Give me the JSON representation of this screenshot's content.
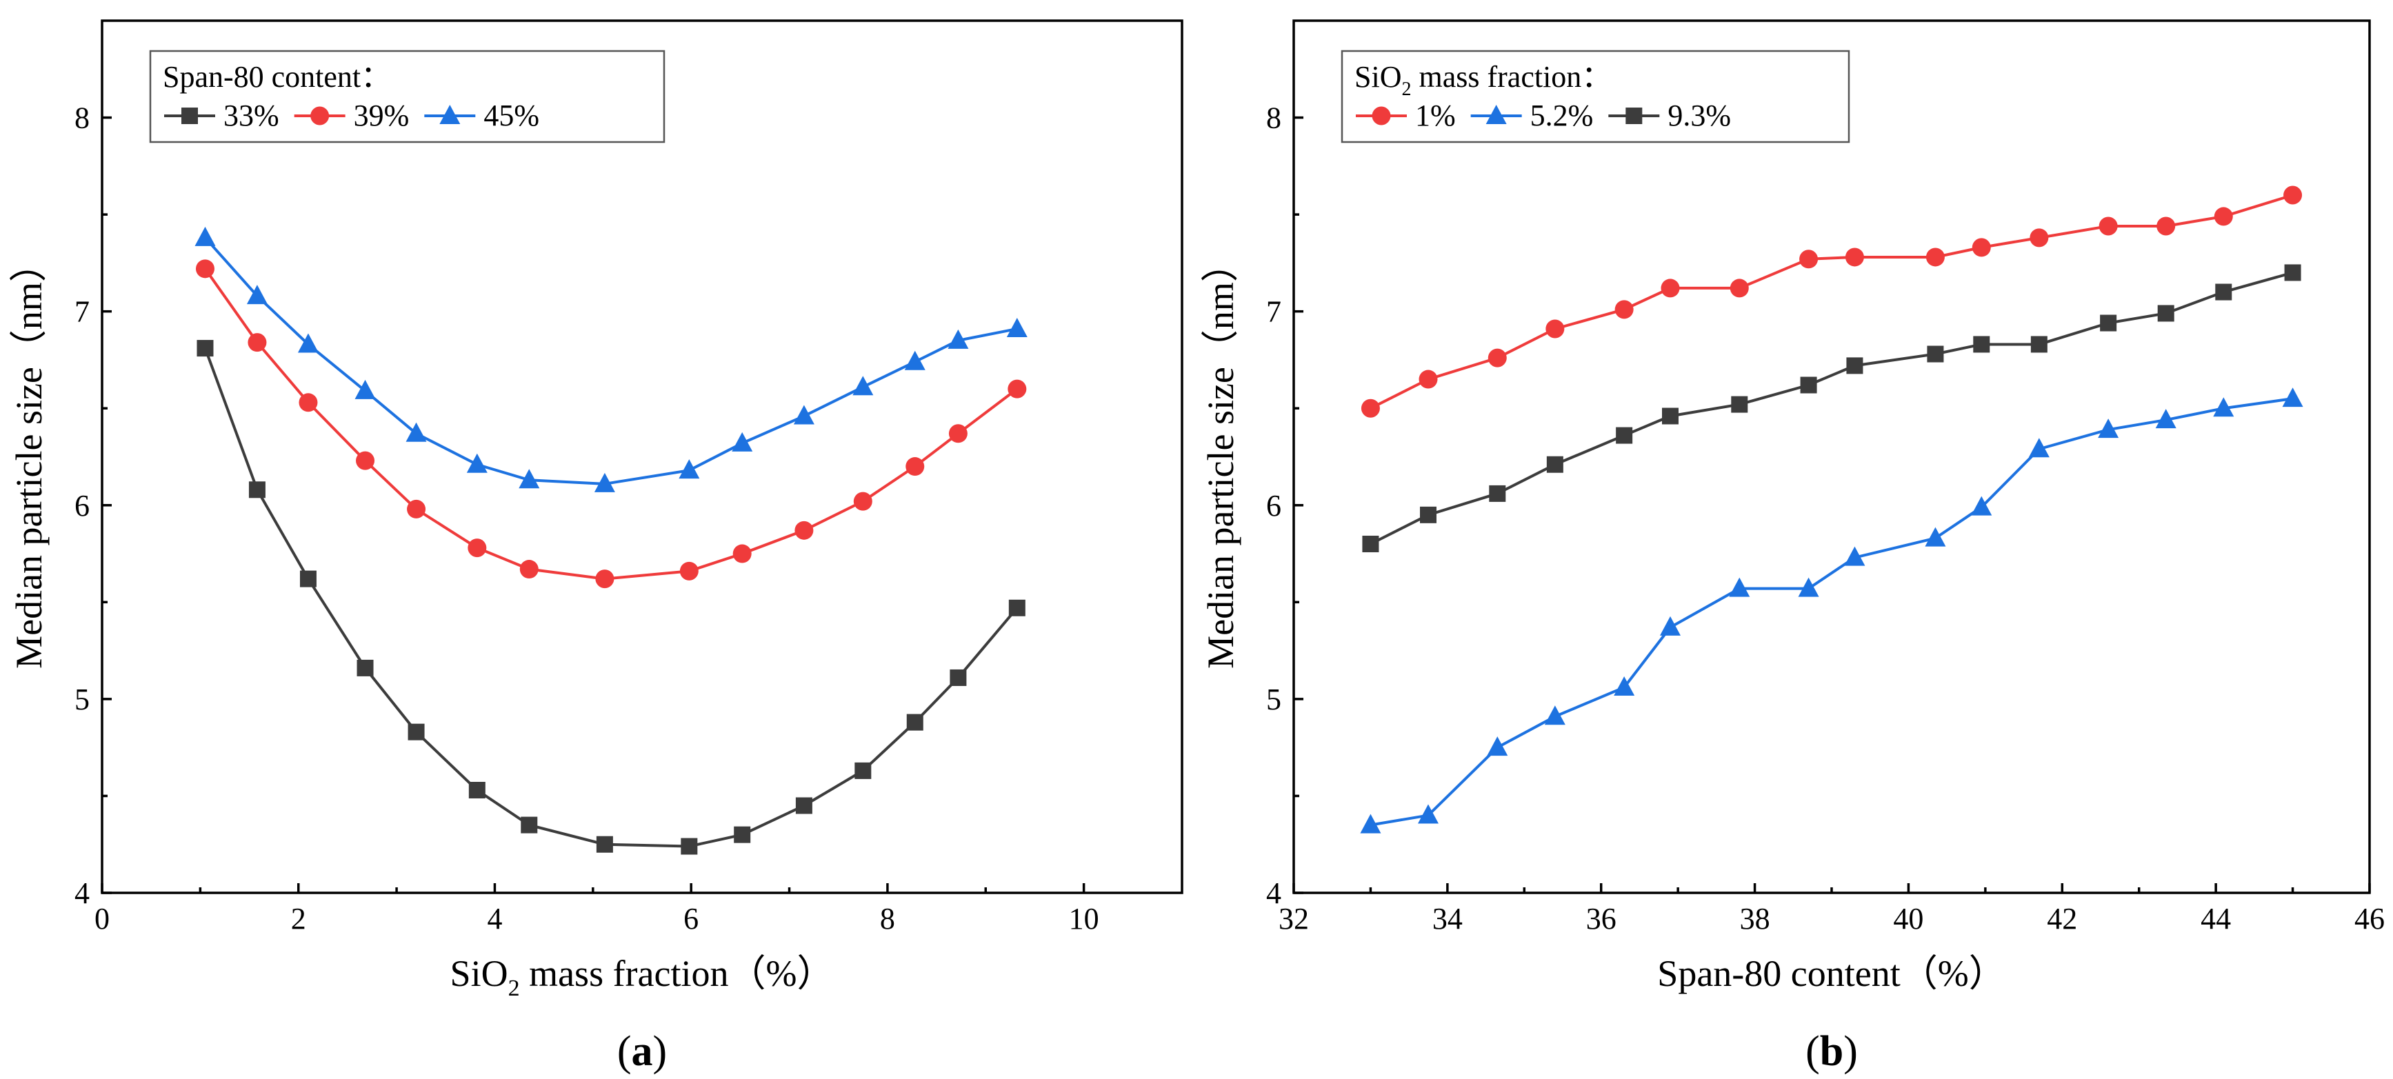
{
  "chart_data": [
    {
      "type": "line",
      "panel_label": "a",
      "xlabel_prefix": "SiO",
      "xlabel_sub": "2",
      "xlabel_suffix": " mass fraction（%）",
      "ylabel": "Median particle size（nm）",
      "xlim": [
        0,
        11
      ],
      "ylim": [
        4,
        8.5
      ],
      "xticks": [
        0,
        2,
        4,
        6,
        8,
        10
      ],
      "yticks": [
        4,
        5,
        6,
        7,
        8
      ],
      "legend_title_prefix": "Span-80 content",
      "legend_title_sub": "",
      "legend_title_suffix": "：",
      "legend_position": "top-left",
      "series": [
        {
          "name": "33%",
          "color": "#3c3c3c",
          "marker": "square",
          "x": [
            1.05,
            1.58,
            2.1,
            2.68,
            3.2,
            3.82,
            4.35,
            5.12,
            5.98,
            6.52,
            7.15,
            7.75,
            8.28,
            8.72,
            9.32
          ],
          "values": [
            6.81,
            6.08,
            5.62,
            5.16,
            4.83,
            4.53,
            4.35,
            4.25,
            4.24,
            4.3,
            4.45,
            4.63,
            4.88,
            5.11,
            5.47
          ]
        },
        {
          "name": "39%",
          "color": "#ef3b3b",
          "marker": "circle",
          "x": [
            1.05,
            1.58,
            2.1,
            2.68,
            3.2,
            3.82,
            4.35,
            5.12,
            5.98,
            6.52,
            7.15,
            7.75,
            8.28,
            8.72,
            9.32
          ],
          "values": [
            7.22,
            6.84,
            6.53,
            6.23,
            5.98,
            5.78,
            5.67,
            5.62,
            5.66,
            5.75,
            5.87,
            6.02,
            6.2,
            6.37,
            6.6
          ]
        },
        {
          "name": "45%",
          "color": "#1d72e0",
          "marker": "triangle",
          "x": [
            1.05,
            1.58,
            2.1,
            2.68,
            3.2,
            3.82,
            4.35,
            5.12,
            5.98,
            6.52,
            7.15,
            7.75,
            8.28,
            8.72,
            9.32
          ],
          "values": [
            7.38,
            7.08,
            6.83,
            6.59,
            6.37,
            6.21,
            6.13,
            6.11,
            6.18,
            6.32,
            6.46,
            6.61,
            6.74,
            6.85,
            6.91
          ]
        }
      ]
    },
    {
      "type": "line",
      "panel_label": "b",
      "xlabel_prefix": "Span-80 content（%）",
      "xlabel_sub": "",
      "xlabel_suffix": "",
      "ylabel": "Median particle size（nm）",
      "xlim": [
        32,
        46
      ],
      "ylim": [
        4,
        8.5
      ],
      "xticks": [
        32,
        34,
        36,
        38,
        40,
        42,
        44,
        46
      ],
      "yticks": [
        4,
        5,
        6,
        7,
        8
      ],
      "legend_title_prefix": "SiO",
      "legend_title_sub": "2",
      "legend_title_suffix": " mass fraction：",
      "legend_position": "top-left",
      "series": [
        {
          "name": "1%",
          "color": "#ef3b3b",
          "marker": "circle",
          "x": [
            33.0,
            33.75,
            34.65,
            35.4,
            36.3,
            36.9,
            37.8,
            38.7,
            39.3,
            40.35,
            40.95,
            41.7,
            42.6,
            43.35,
            44.1,
            45.0
          ],
          "values": [
            6.5,
            6.65,
            6.76,
            6.91,
            7.01,
            7.12,
            7.12,
            7.27,
            7.28,
            7.28,
            7.33,
            7.38,
            7.44,
            7.44,
            7.49,
            7.6
          ]
        },
        {
          "name": "5.2%",
          "color": "#1d72e0",
          "marker": "triangle",
          "x": [
            33.0,
            33.75,
            34.65,
            35.4,
            36.3,
            36.9,
            37.8,
            38.7,
            39.3,
            40.35,
            40.95,
            41.7,
            42.6,
            43.35,
            44.1,
            45.0
          ],
          "values": [
            4.35,
            4.4,
            4.75,
            4.91,
            5.06,
            5.37,
            5.57,
            5.57,
            5.73,
            5.83,
            5.99,
            6.29,
            6.39,
            6.44,
            6.5,
            6.55
          ]
        },
        {
          "name": "9.3%",
          "color": "#3c3c3c",
          "marker": "square",
          "x": [
            33.0,
            33.75,
            34.65,
            35.4,
            36.3,
            36.9,
            37.8,
            38.7,
            39.3,
            40.35,
            40.95,
            41.7,
            42.6,
            43.35,
            44.1,
            45.0
          ],
          "values": [
            5.8,
            5.95,
            6.06,
            6.21,
            6.36,
            6.46,
            6.52,
            6.62,
            6.72,
            6.78,
            6.83,
            6.83,
            6.94,
            6.99,
            7.1,
            7.2
          ]
        }
      ]
    }
  ]
}
